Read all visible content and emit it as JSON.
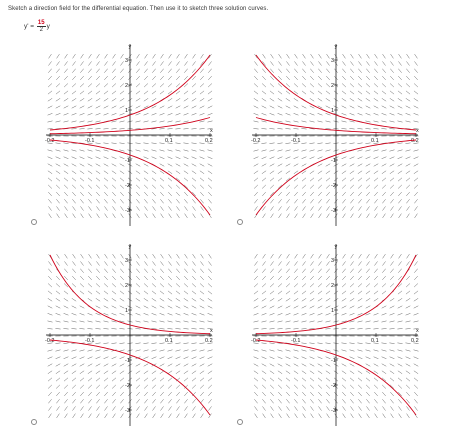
{
  "instruction": "Sketch a direction field for the differential equation. Then use it to sketch three solution curves.",
  "equation": {
    "lhs": "y' =",
    "numerator": "15",
    "denominator": "2",
    "var": "y"
  },
  "options": [
    {
      "id": "option-1",
      "slope_sign": 1,
      "curves": [
        {
          "x": [
            -0.2,
            0.2
          ],
          "y": [
            0.2,
            3.2
          ]
        },
        {
          "x": [
            -0.2,
            0.2
          ],
          "y": [
            0.05,
            0.7
          ]
        },
        {
          "x": [
            -0.2,
            0.2
          ],
          "y": [
            -0.2,
            -3.2
          ]
        }
      ]
    },
    {
      "id": "option-2",
      "slope_sign": -1,
      "curves": [
        {
          "x": [
            -0.2,
            0.2
          ],
          "y": [
            3.2,
            0.2
          ]
        },
        {
          "x": [
            -0.2,
            0.2
          ],
          "y": [
            0.7,
            0.05
          ]
        },
        {
          "x": [
            -0.2,
            0.2
          ],
          "y": [
            -3.2,
            -0.2
          ]
        }
      ]
    },
    {
      "id": "option-3",
      "slope_sign": -1,
      "curves": [
        {
          "x": [
            -0.2,
            0.2
          ],
          "y": [
            3.2,
            0.05
          ]
        },
        {
          "x": [
            -0.2,
            0.2
          ],
          "y": [
            0.3,
            -0.1
          ]
        },
        {
          "x": [
            -0.2,
            0.2
          ],
          "y": [
            -0.2,
            -3.2
          ]
        }
      ]
    },
    {
      "id": "option-4",
      "slope_sign": 1,
      "curves": [
        {
          "x": [
            -0.2,
            0.2
          ],
          "y": [
            0.05,
            3.2
          ]
        },
        {
          "x": [
            -0.2,
            0.2
          ],
          "y": [
            -0.1,
            0.3
          ]
        },
        {
          "x": [
            -0.2,
            0.2
          ],
          "y": [
            -0.2,
            -3.2
          ]
        }
      ]
    }
  ],
  "axes": {
    "xlabel": "x",
    "ylabel": "y",
    "xticks": [
      "-0.2",
      "-0.1",
      "0.1",
      "0.2"
    ],
    "yticks": [
      "3",
      "2",
      "1",
      "-1",
      "-2",
      "-3"
    ],
    "xlim": [
      -0.2,
      0.2
    ],
    "ylim": [
      -3.2,
      3.2
    ]
  },
  "colors": {
    "curve": "#d0021b",
    "field": "#555555",
    "axis": "#000000"
  }
}
